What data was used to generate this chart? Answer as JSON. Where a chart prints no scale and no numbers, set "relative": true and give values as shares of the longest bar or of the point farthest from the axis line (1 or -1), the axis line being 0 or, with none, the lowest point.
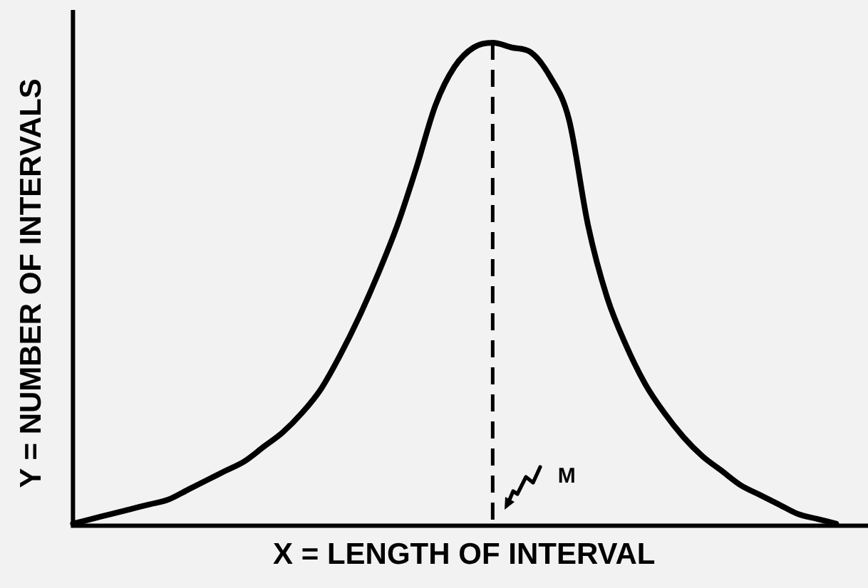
{
  "chart_data": {
    "type": "line",
    "relative": true,
    "xlabel": "X = LENGTH OF INTERVAL",
    "ylabel": "Y = NUMBER OF INTERVALS",
    "categories": [
      null,
      null,
      null,
      null,
      null,
      null,
      null,
      null,
      null,
      null,
      null,
      null,
      null,
      null,
      null,
      null,
      null,
      null,
      null,
      null,
      null,
      null,
      null,
      null,
      null,
      null,
      null,
      null,
      null,
      null,
      null,
      null,
      null,
      null,
      null,
      null,
      null,
      null,
      null,
      null,
      null,
      null
    ],
    "values": [
      0,
      0.01,
      0.02,
      0.03,
      0.04,
      0.05,
      0.07,
      0.09,
      0.11,
      0.13,
      0.16,
      0.19,
      0.23,
      0.28,
      0.35,
      0.43,
      0.52,
      0.62,
      0.74,
      0.87,
      0.95,
      0.99,
      1,
      0.99,
      0.98,
      0.93,
      0.84,
      0.62,
      0.47,
      0.37,
      0.29,
      0.23,
      0.18,
      0.14,
      0.11,
      0.08,
      0.06,
      0.04,
      0.02,
      0.01,
      0,
      null
    ],
    "color": "#000000",
    "marker": "none",
    "grid": false,
    "legend": false,
    "tick_labels": false,
    "annotations": [
      "M"
    ]
  }
}
